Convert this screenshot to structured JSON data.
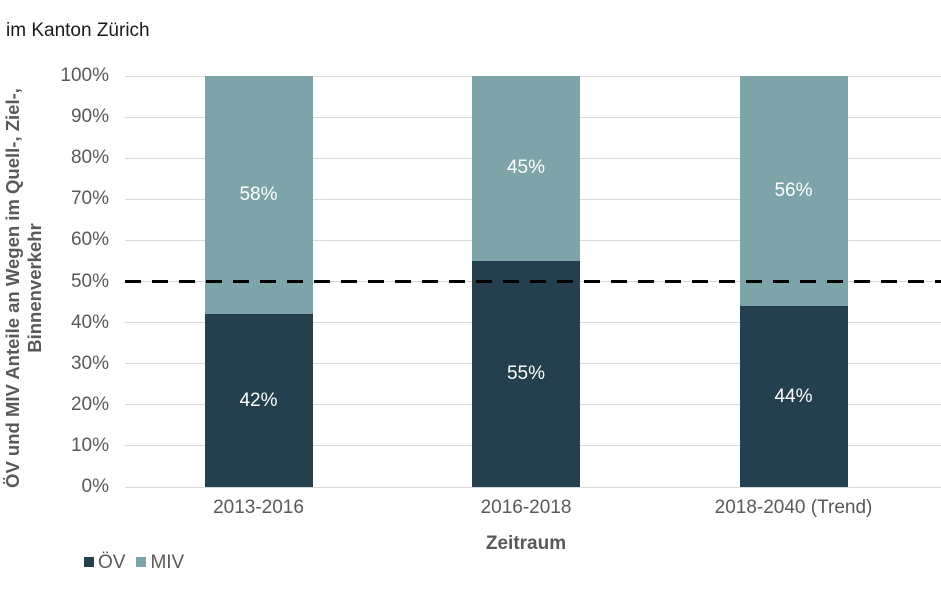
{
  "title": "im Kanton Zürich",
  "colors": {
    "oev": "#24404e",
    "miv": "#7da4a9",
    "gridline": "#d9d9d9",
    "tick_label": "#595959",
    "axis_title": "#404040",
    "chart_title": "#262626",
    "reference_line": "#000000",
    "data_label": "#ffffff",
    "background": "#ffffff"
  },
  "chart_data": {
    "type": "bar",
    "stacked": true,
    "title": "im Kanton Zürich",
    "categories": [
      "2013-2016",
      "2016-2018",
      "2018-2040 (Trend)"
    ],
    "series": [
      {
        "name": "ÖV",
        "values": [
          42,
          55,
          44
        ],
        "color": "#24404e"
      },
      {
        "name": "MIV",
        "values": [
          58,
          45,
          56
        ],
        "color": "#7da4a9"
      }
    ],
    "data_label_suffix": "%",
    "xlabel": "Zeitraum",
    "ylabel": "ÖV und MIV Anteile an Wegen im Quell-, Ziel-, Binnenverkehr",
    "ylabel_lines": [
      "ÖV und MIV Anteile an Wegen im Quell-, Ziel-,",
      "Binnenverkehr"
    ],
    "ylim": [
      0,
      100
    ],
    "ytick_step": 10,
    "ytick_labels": [
      "0%",
      "10%",
      "20%",
      "30%",
      "40%",
      "50%",
      "60%",
      "70%",
      "80%",
      "90%",
      "100%"
    ],
    "grid": true,
    "legend_position": "bottom-left",
    "legend": [
      "ÖV",
      "MIV"
    ],
    "reference_line": {
      "value": 50,
      "style": "dashed",
      "color": "#000000"
    }
  }
}
